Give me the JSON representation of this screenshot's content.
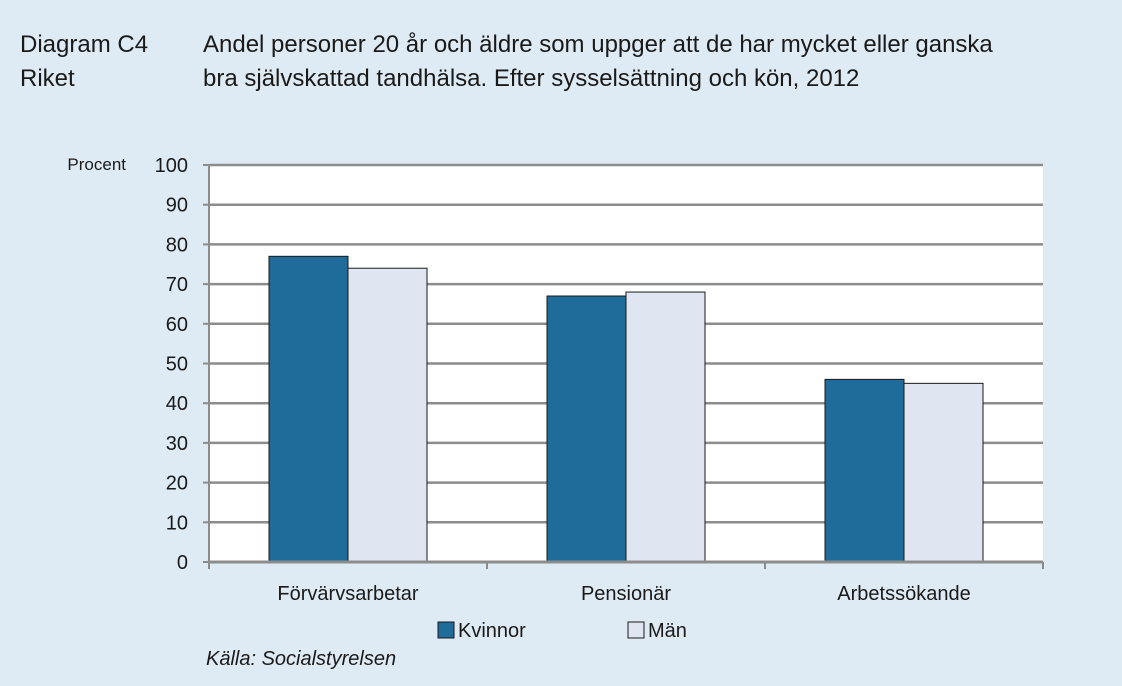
{
  "header": {
    "diagram_id": "Diagram C4",
    "region": "Riket",
    "title_line1": "Andel personer 20 år och äldre som uppger att de har mycket eller ganska",
    "title_line2": "bra självskattad tandhälsa. Efter sysselsättning och kön, 2012"
  },
  "source": "Källa: Socialstyrelsen",
  "colors": {
    "kvinnor": "#1f6b9a",
    "man": "#dfe6f1",
    "plot_bg": "#ffffff",
    "grid": "#8c8c8c",
    "page_bg": "#deebf4"
  },
  "chart_data": {
    "type": "bar",
    "ylabel": "Procent",
    "ylim": [
      0,
      100
    ],
    "yticks": [
      0,
      10,
      20,
      30,
      40,
      50,
      60,
      70,
      80,
      90,
      100
    ],
    "categories": [
      "Förvärvsarbetar",
      "Pensionär",
      "Arbetssökande"
    ],
    "series": [
      {
        "name": "Kvinnor",
        "values": [
          77,
          67,
          46
        ]
      },
      {
        "name": "Män",
        "values": [
          74,
          68,
          45
        ]
      }
    ],
    "grid": true,
    "legend_position": "bottom"
  }
}
